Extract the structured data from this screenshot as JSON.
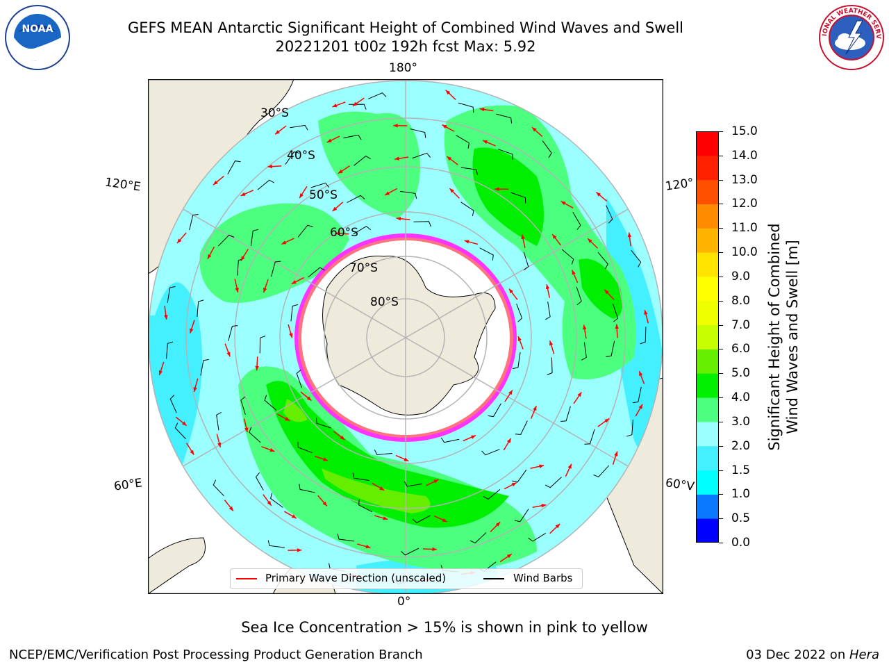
{
  "title": {
    "line1": "GEFS MEAN Antarctic Significant Height of Combined Wind Waves and Swell",
    "line2": "20221201 t00z 192h fcst   Max: 5.92"
  },
  "logos": {
    "left": {
      "icon": "noaa-logo",
      "text": "NOAA"
    },
    "right": {
      "icon": "nws-logo",
      "text": "NATIONAL WEATHER SERVICE"
    }
  },
  "map": {
    "projection": "south-polar-stereographic",
    "lon_labels": {
      "top": "180°",
      "bottom": "0°",
      "left_upper": "120°E",
      "left_lower": "60°E",
      "right_upper": "120°",
      "right_lower": "60°V"
    },
    "lat_labels": [
      "30°S",
      "40°S",
      "50°S",
      "60°S",
      "70°S",
      "80°S"
    ],
    "colors": {
      "land": "#efebdc",
      "ice": "#ffffff",
      "grid": "#b3b3b3",
      "ice_edge": "#ff33ff",
      "wave_arrow": "#ff0000",
      "barb": "#000000"
    }
  },
  "chart_data": {
    "type": "heatmap",
    "title": "GEFS MEAN Antarctic Significant Height of Combined Wind Waves and Swell",
    "variable": "Significant Height of Combined Wind Waves and Swell [m]",
    "max": 5.92,
    "levels": [
      0.0,
      0.5,
      1.0,
      1.5,
      2.0,
      3.0,
      4.0,
      5.0,
      6.0,
      7.0,
      8.0,
      9.0,
      10.0,
      11.0,
      12.0,
      13.0,
      14.0,
      15.0
    ],
    "level_colors": [
      "#0000ff",
      "#0a78ff",
      "#00ffff",
      "#44f0ff",
      "#9cffff",
      "#4cff7e",
      "#00ee00",
      "#66ee00",
      "#c6ff00",
      "#eeff00",
      "#ffff00",
      "#ffe400",
      "#ffb400",
      "#ff8c00",
      "#ff5000",
      "#ff2000",
      "#ff0000"
    ],
    "regions": [
      {
        "name": "south-indian-ocean-belt",
        "value_range": [
          3.0,
          5.0
        ]
      },
      {
        "name": "south-pacific-belt",
        "value_range": [
          3.0,
          5.0
        ]
      },
      {
        "name": "southwest-pacific",
        "value_range": [
          3.0,
          4.0
        ]
      },
      {
        "name": "background-ocean",
        "value_range": [
          1.5,
          3.0
        ]
      }
    ]
  },
  "colorbar": {
    "ticks": [
      "15.0",
      "14.0",
      "13.0",
      "12.0",
      "11.0",
      "10.0",
      "9.0",
      "8.0",
      "7.0",
      "6.0",
      "5.0",
      "4.0",
      "3.0",
      "2.0",
      "1.5",
      "1.0",
      "0.5",
      "0.0"
    ],
    "label_line1": "Significant Height of Combined",
    "label_line2": "Wind Waves and Swell [m]"
  },
  "legend": {
    "wave_label": "Primary Wave Direction (unscaled)",
    "barb_label": "Wind Barbs"
  },
  "caption": "Sea Ice Concentration > 15% is shown in pink to yellow",
  "footer": {
    "left": "NCEP/EMC/Verification Post Processing Product Generation Branch",
    "right_prefix": "03 Dec 2022 on ",
    "right_host": "Hera"
  }
}
